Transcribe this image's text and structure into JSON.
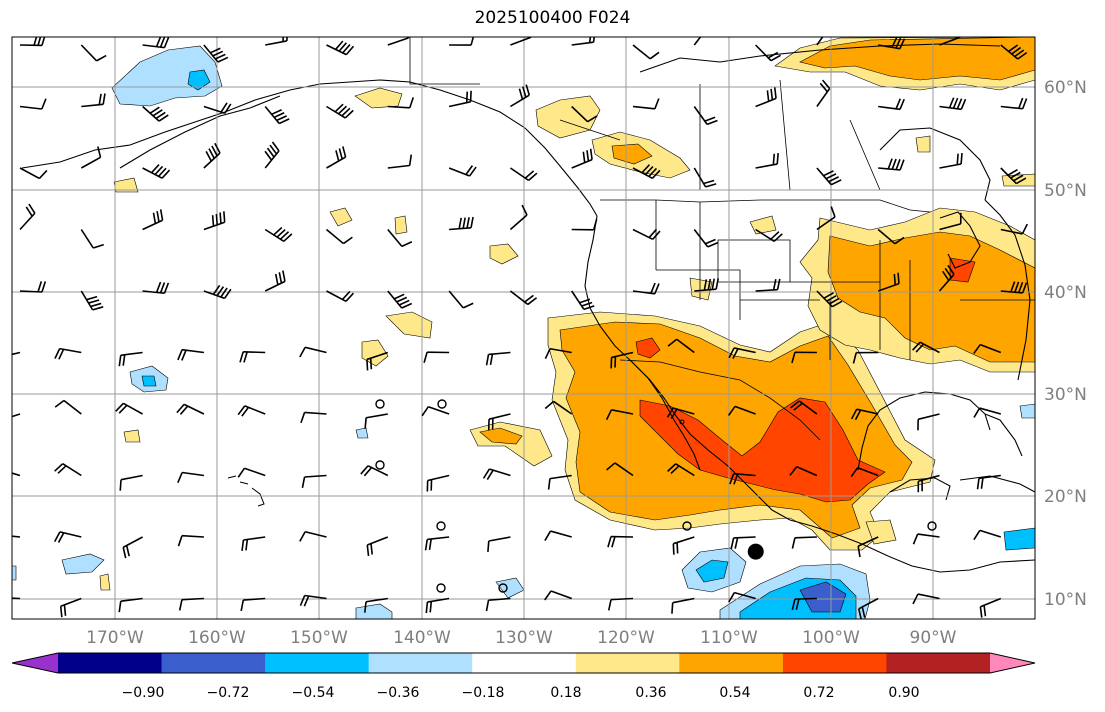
{
  "title": "2025100400 F024",
  "map": {
    "lon_range": [
      -180,
      -80
    ],
    "lat_range": [
      8,
      65
    ],
    "gridline_lons": [
      -170,
      -160,
      -150,
      -140,
      -130,
      -120,
      -110,
      -100,
      -90
    ],
    "gridline_lats": [
      10,
      20,
      30,
      40,
      50,
      60
    ],
    "lon_labels": [
      "170°W",
      "160°W",
      "150°W",
      "140°W",
      "130°W",
      "120°W",
      "110°W",
      "100°W",
      "90°W"
    ],
    "lat_labels": [
      "10°N",
      "20°N",
      "30°N",
      "40°N",
      "50°N",
      "60°N"
    ],
    "grid": true,
    "marker": {
      "lon": -107.3,
      "lat": 14.6,
      "symbol": "filled-circle"
    }
  },
  "colorbar": {
    "tick_labels": [
      "−0.90",
      "−0.72",
      "−0.54",
      "−0.36",
      "−0.18",
      "0.18",
      "0.36",
      "0.54",
      "0.72",
      "0.90"
    ],
    "colors": [
      "#9932cc",
      "#00008b",
      "#3a5fcd",
      "#00bfff",
      "#b0e0ff",
      "#ffffff",
      "#ffe88a",
      "#ffa500",
      "#ff4500",
      "#b22222",
      "#ff88bb"
    ],
    "extend": "both"
  }
}
